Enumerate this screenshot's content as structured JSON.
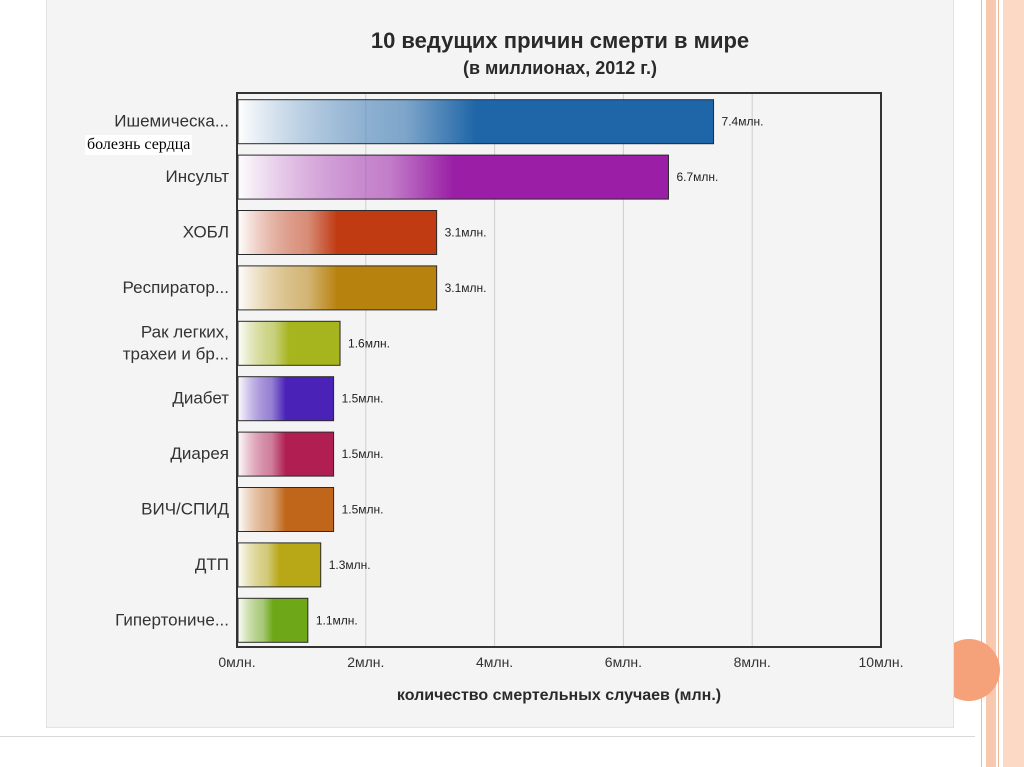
{
  "chart_data": {
    "type": "bar",
    "orientation": "horizontal",
    "title": "10 ведущих причин смерти в мире",
    "subtitle": "(в миллионах, 2012 г.)",
    "xlabel": "количество смертельных случаев (млн.)",
    "xlim": [
      0,
      10
    ],
    "grid": true,
    "x_ticks": [
      {
        "value": 0,
        "label": "0млн."
      },
      {
        "value": 2,
        "label": "2млн."
      },
      {
        "value": 4,
        "label": "4млн."
      },
      {
        "value": 6,
        "label": "6млн."
      },
      {
        "value": 8,
        "label": "8млн."
      },
      {
        "value": 10,
        "label": "10млн."
      }
    ],
    "categories": [
      {
        "label": [
          "Ишемическа..."
        ],
        "value": 7.4,
        "value_label": "7.4млн.",
        "color": "#1f66a8"
      },
      {
        "label": [
          "Инсульт"
        ],
        "value": 6.7,
        "value_label": "6.7млн.",
        "color": "#9a1fa6"
      },
      {
        "label": [
          "ХОБЛ"
        ],
        "value": 3.1,
        "value_label": "3.1млн.",
        "color": "#c03a12"
      },
      {
        "label": [
          "Респиратор..."
        ],
        "value": 3.1,
        "value_label": "3.1млн.",
        "color": "#b8820e"
      },
      {
        "label": [
          "Рак легких,",
          "трахеи и бр..."
        ],
        "value": 1.6,
        "value_label": "1.6млн.",
        "color": "#a6b41e"
      },
      {
        "label": [
          "Диабет"
        ],
        "value": 1.5,
        "value_label": "1.5млн.",
        "color": "#4a22b8"
      },
      {
        "label": [
          "Диарея"
        ],
        "value": 1.5,
        "value_label": "1.5млн.",
        "color": "#b01e52"
      },
      {
        "label": [
          "ВИЧ/СПИД"
        ],
        "value": 1.5,
        "value_label": "1.5млн.",
        "color": "#c0661a"
      },
      {
        "label": [
          "ДТП"
        ],
        "value": 1.3,
        "value_label": "1.3млн.",
        "color": "#b8a818"
      },
      {
        "label": [
          "Гипертониче..."
        ],
        "value": 1.1,
        "value_label": "1.1млн.",
        "color": "#6ea818"
      }
    ]
  },
  "overlay_label": "болезнь сердца"
}
